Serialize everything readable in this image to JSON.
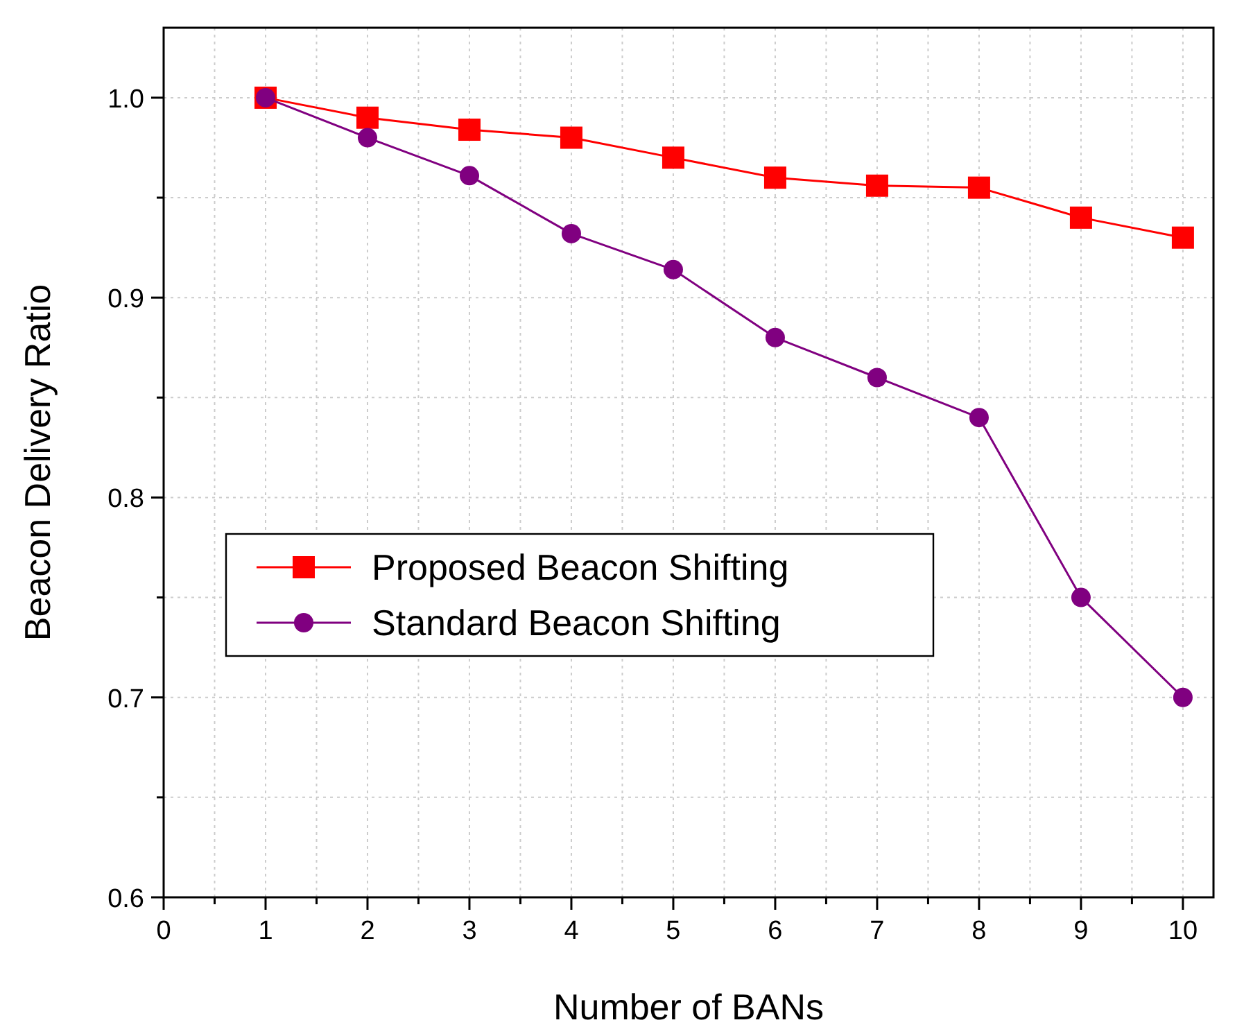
{
  "chart_data": {
    "type": "line",
    "xlabel": "Number of BANs",
    "ylabel": "Beacon Delivery Ratio",
    "x": [
      1,
      2,
      3,
      4,
      5,
      6,
      7,
      8,
      9,
      10
    ],
    "series": [
      {
        "name": "Proposed Beacon Shifting",
        "color": "#ff0000",
        "marker": "square",
        "values": [
          1.0,
          0.99,
          0.984,
          0.98,
          0.97,
          0.96,
          0.956,
          0.955,
          0.94,
          0.93
        ]
      },
      {
        "name": "Standard Beacon Shifting",
        "color": "#800080",
        "marker": "circle",
        "values": [
          1.0,
          0.98,
          0.961,
          0.932,
          0.914,
          0.88,
          0.86,
          0.84,
          0.75,
          0.7
        ]
      }
    ],
    "xlim": [
      0,
      10.3
    ],
    "ylim": [
      0.6,
      1.035
    ],
    "xticks": [
      0,
      {
        "value": 0.5,
        "label": null
      },
      1,
      {
        "value": 1.5,
        "label": null
      },
      2,
      {
        "value": 2.5,
        "label": null
      },
      3,
      {
        "value": 3.5,
        "label": null
      },
      4,
      {
        "value": 4.5,
        "label": null
      },
      5,
      {
        "value": 5.5,
        "label": null
      },
      6,
      {
        "value": 6.5,
        "label": null
      },
      7,
      {
        "value": 7.5,
        "label": null
      },
      8,
      {
        "value": 8.5,
        "label": null
      },
      9,
      {
        "value": 9.5,
        "label": null
      },
      10
    ],
    "yticks": [
      {
        "value": 0.6,
        "label": "0.6"
      },
      {
        "value": 0.65,
        "label": null
      },
      {
        "value": 0.7,
        "label": "0.7"
      },
      {
        "value": 0.75,
        "label": null
      },
      {
        "value": 0.8,
        "label": "0.8"
      },
      {
        "value": 0.85,
        "label": null
      },
      {
        "value": 0.9,
        "label": "0.9"
      },
      {
        "value": 0.95,
        "label": null
      },
      {
        "value": 1.0,
        "label": "1.0"
      }
    ],
    "grid": true,
    "legend": "left",
    "line_style": "solid"
  }
}
